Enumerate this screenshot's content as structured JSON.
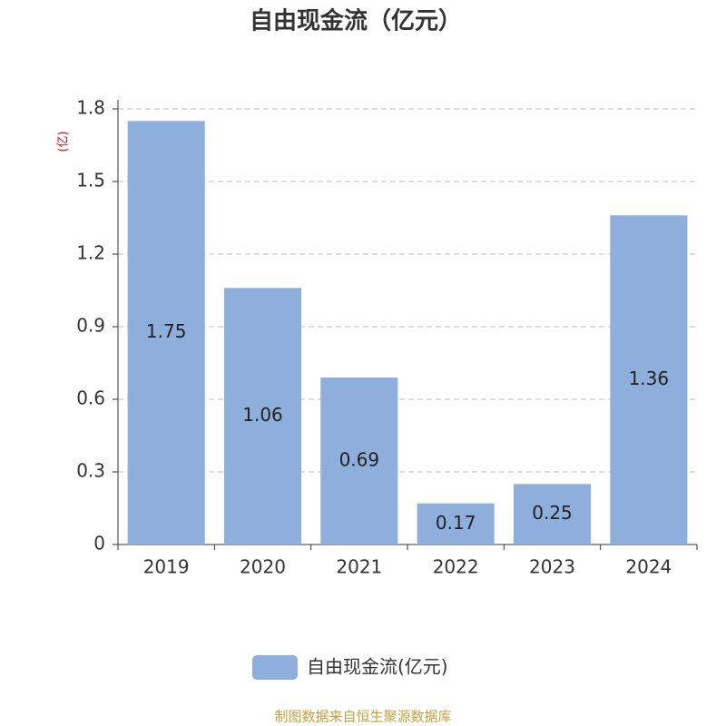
{
  "chart_data": {
    "type": "bar",
    "title": "自由现金流（亿元）",
    "y_label": "(亿)",
    "categories": [
      "2019",
      "2020",
      "2021",
      "2022",
      "2023",
      "2024"
    ],
    "series": [
      {
        "name": "自由现金流(亿元)",
        "color": "#8eaedb",
        "values": [
          1.75,
          1.06,
          0.69,
          0.17,
          0.25,
          1.36
        ]
      }
    ],
    "ylim": [
      0,
      1.8
    ],
    "yticks": [
      0,
      0.3,
      0.6,
      0.9,
      1.2,
      1.5,
      1.8
    ],
    "grid": true,
    "source": "制图数据来自恒生聚源数据库"
  }
}
